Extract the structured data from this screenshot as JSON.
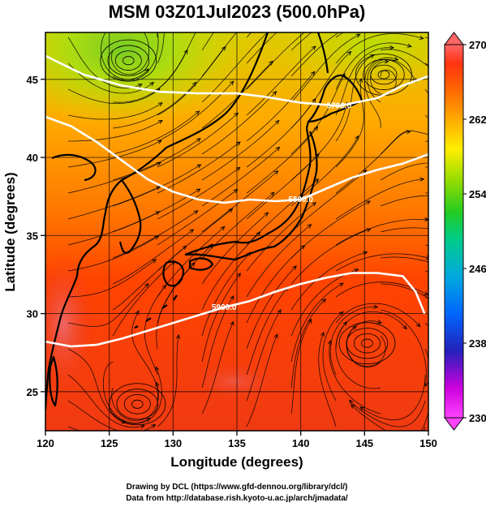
{
  "title": "MSM 03Z01Jul2023 (500.0hPa)",
  "map": {
    "lon_range": [
      120,
      150
    ],
    "lat_range": [
      22.5,
      48
    ],
    "lon_ticks": [
      120,
      125,
      130,
      135,
      140,
      145,
      150
    ],
    "lat_ticks": [
      25,
      30,
      35,
      40,
      45
    ],
    "xlabel": "Longitude (degrees)",
    "ylabel": "Latitude  (degrees)",
    "grid": true,
    "fill_variable_range": [
      230,
      270
    ],
    "contours": [
      {
        "label": "5700.0",
        "color": "#ffffff",
        "points": [
          [
            120,
            46.5
          ],
          [
            123,
            45.3
          ],
          [
            126,
            44.6
          ],
          [
            129,
            44.2
          ],
          [
            132,
            44.1
          ],
          [
            135,
            44.1
          ],
          [
            137,
            43.9
          ],
          [
            140,
            43.5
          ],
          [
            143,
            43.3
          ],
          [
            146,
            43.8
          ],
          [
            148,
            44.6
          ],
          [
            150,
            45.2
          ]
        ]
      },
      {
        "label": "5800.0",
        "color": "#ffffff",
        "points": [
          [
            120,
            42.6
          ],
          [
            122,
            42.0
          ],
          [
            124,
            41.0
          ],
          [
            126,
            39.8
          ],
          [
            128,
            38.6
          ],
          [
            130,
            37.8
          ],
          [
            132,
            37.3
          ],
          [
            134,
            37.1
          ],
          [
            136,
            37.3
          ],
          [
            138,
            37.2
          ],
          [
            140,
            37.3
          ],
          [
            142,
            38.0
          ],
          [
            144,
            38.7
          ],
          [
            146,
            39.2
          ],
          [
            148,
            39.6
          ],
          [
            150,
            40.2
          ]
        ]
      },
      {
        "label": "5900.0",
        "color": "#ffffff",
        "points": [
          [
            120,
            28.2
          ],
          [
            122,
            27.9
          ],
          [
            124,
            28.0
          ],
          [
            126,
            28.4
          ],
          [
            128,
            28.9
          ],
          [
            130,
            29.4
          ],
          [
            132,
            29.9
          ],
          [
            134,
            30.4
          ],
          [
            136,
            30.8
          ],
          [
            138,
            31.4
          ],
          [
            140,
            31.9
          ],
          [
            142,
            32.3
          ],
          [
            144,
            32.6
          ],
          [
            146,
            32.6
          ],
          [
            148,
            32.4
          ],
          [
            149,
            31.4
          ],
          [
            149.7,
            30.0
          ]
        ]
      }
    ],
    "vortices": [
      [
        126.5,
        46.2
      ],
      [
        145.2,
        28.1
      ],
      [
        127.2,
        24.2
      ],
      [
        146.5,
        45.3
      ]
    ]
  },
  "colorbar": {
    "ticks": [
      270,
      262,
      254,
      246,
      238,
      230
    ],
    "range": [
      230,
      270
    ],
    "colors": [
      "#ff44ff",
      "#ee00ee",
      "#bb00dd",
      "#2222bb",
      "#0044ff",
      "#0099ff",
      "#00bbdd",
      "#00ccbb",
      "#00cc77",
      "#22cc22",
      "#77dd00",
      "#bbee00",
      "#ffee00",
      "#ffbb00",
      "#ff9900",
      "#ff6600",
      "#ff4400",
      "#ee3311",
      "#ff6666"
    ]
  },
  "credits": {
    "line1": "Drawing by DCL (https://www.gfd-dennou.org/library/dcl/)",
    "line2": "Data from http://database.rish.kyoto-u.ac.jp/arch/jmadata/"
  }
}
